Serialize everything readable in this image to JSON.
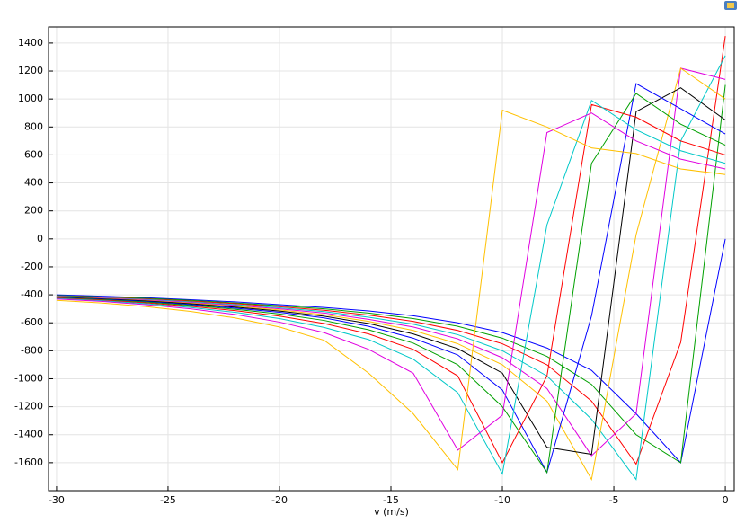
{
  "chart_data": {
    "type": "line",
    "x_label": "v (m/s)",
    "x": [
      -30,
      -28,
      -26,
      -24,
      -22,
      -20,
      -18,
      -16,
      -14,
      -12,
      -10,
      -8,
      -6,
      -4,
      -2,
      0
    ],
    "xlim": [
      -30.36,
      0.4
    ],
    "xticks": [
      -30,
      -25,
      -20,
      -15,
      -10,
      -5,
      0
    ],
    "ylim": [
      -1800,
      1515
    ],
    "yticks": [
      -1600,
      -1400,
      -1200,
      -1000,
      -800,
      -600,
      -400,
      -200,
      0,
      200,
      400,
      600,
      800,
      1000,
      1200,
      1400
    ],
    "grid": true,
    "series": [
      {
        "color": "#0000ff",
        "values": [
          -400,
          -410,
          -420,
          -435,
          -450,
          -470,
          -490,
          -515,
          -550,
          -600,
          -670,
          -780,
          -940,
          -1250,
          -1600,
          0
        ]
      },
      {
        "color": "#00a000",
        "values": [
          -405,
          -415,
          -425,
          -440,
          -458,
          -478,
          -500,
          -530,
          -570,
          -625,
          -710,
          -840,
          -1040,
          -1400,
          -1600,
          1100
        ]
      },
      {
        "color": "#ff0000",
        "values": [
          -408,
          -418,
          -430,
          -445,
          -463,
          -485,
          -510,
          -545,
          -590,
          -655,
          -750,
          -900,
          -1160,
          -1610,
          -740,
          1450
        ]
      },
      {
        "color": "#00c8c8",
        "values": [
          -410,
          -420,
          -433,
          -450,
          -470,
          -493,
          -520,
          -560,
          -610,
          -685,
          -800,
          -980,
          -1290,
          -1720,
          700,
          1310
        ]
      },
      {
        "color": "#e000e0",
        "values": [
          -412,
          -423,
          -437,
          -455,
          -476,
          -500,
          -530,
          -575,
          -630,
          -715,
          -850,
          -1070,
          -1550,
          -1250,
          1220,
          1140
        ]
      },
      {
        "color": "#ffc000",
        "values": [
          -414,
          -426,
          -441,
          -460,
          -482,
          -508,
          -542,
          -590,
          -655,
          -750,
          -900,
          -1160,
          -1720,
          30,
          1220,
          1000
        ]
      },
      {
        "color": "#000000",
        "values": [
          -416,
          -428,
          -444,
          -464,
          -488,
          -516,
          -553,
          -605,
          -680,
          -785,
          -960,
          -1490,
          -1540,
          910,
          1080,
          850
        ]
      },
      {
        "color": "#0000ff",
        "values": [
          -418,
          -431,
          -448,
          -469,
          -495,
          -525,
          -565,
          -625,
          -710,
          -830,
          -1080,
          -1670,
          -550,
          1110,
          930,
          750
        ]
      },
      {
        "color": "#00a000",
        "values": [
          -420,
          -434,
          -452,
          -475,
          -503,
          -537,
          -583,
          -650,
          -745,
          -900,
          -1200,
          -1670,
          540,
          1040,
          820,
          670
        ]
      },
      {
        "color": "#ff0000",
        "values": [
          -423,
          -438,
          -457,
          -482,
          -513,
          -552,
          -605,
          -680,
          -790,
          -980,
          -1600,
          -980,
          960,
          870,
          700,
          600
        ]
      },
      {
        "color": "#00c8c8",
        "values": [
          -426,
          -442,
          -463,
          -490,
          -525,
          -570,
          -633,
          -720,
          -860,
          -1100,
          -1680,
          100,
          990,
          780,
          630,
          540
        ]
      },
      {
        "color": "#e000e0",
        "values": [
          -430,
          -447,
          -470,
          -500,
          -540,
          -595,
          -670,
          -790,
          -960,
          -1510,
          -1260,
          760,
          900,
          700,
          570,
          500
        ]
      },
      {
        "color": "#ffc000",
        "values": [
          -440,
          -458,
          -484,
          -518,
          -565,
          -630,
          -725,
          -960,
          -1250,
          -1650,
          920,
          800,
          650,
          610,
          500,
          460
        ]
      }
    ]
  }
}
